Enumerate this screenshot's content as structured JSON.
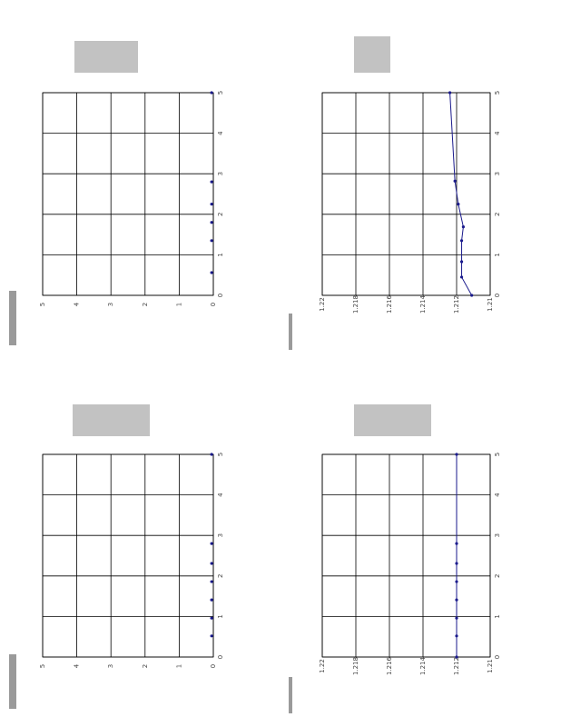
{
  "chart_data": [
    {
      "type": "scatter",
      "x": [
        0.56,
        1.35,
        1.8,
        2.25,
        2.8,
        5
      ],
      "values": [
        0.05,
        0.05,
        0.05,
        0.05,
        0.05,
        0.05
      ],
      "color": "#1a1a8c",
      "xlim": [
        0,
        5
      ],
      "xticks": [
        0,
        1,
        2,
        3,
        4,
        5
      ],
      "ylim": [
        0,
        5
      ],
      "yticks": [
        0,
        1,
        2,
        3,
        4,
        5
      ],
      "grid": true
    },
    {
      "type": "line",
      "x": [
        0,
        0.45,
        0.83,
        1.35,
        1.69,
        2.25,
        2.82,
        5
      ],
      "values": [
        1.2111,
        1.2117,
        1.2117,
        1.2117,
        1.2116,
        1.2119,
        1.2121,
        1.2124
      ],
      "color": "#1a1a8c",
      "xlim": [
        0,
        5
      ],
      "xticks": [
        0,
        1,
        2,
        3,
        4,
        5
      ],
      "ylim": [
        1.21,
        1.22
      ],
      "yticks": [
        1.21,
        1.212,
        1.214,
        1.216,
        1.218,
        1.22
      ],
      "grid": true
    },
    {
      "type": "scatter",
      "x": [
        0.52,
        0.96,
        1.41,
        1.86,
        2.31,
        2.8,
        5
      ],
      "values": [
        0.05,
        0.05,
        0.05,
        0.05,
        0.05,
        0.05,
        0.05
      ],
      "color": "#1a1a8c",
      "xlim": [
        0,
        5
      ],
      "xticks": [
        0,
        1,
        2,
        3,
        4,
        5
      ],
      "ylim": [
        0,
        5
      ],
      "yticks": [
        0,
        1,
        2,
        3,
        4,
        5
      ],
      "grid": true
    },
    {
      "type": "line",
      "x": [
        0,
        0.52,
        0.96,
        1.41,
        1.86,
        2.31,
        2.8,
        5
      ],
      "values": [
        1.212,
        1.212,
        1.212,
        1.212,
        1.212,
        1.212,
        1.212,
        1.212
      ],
      "color": "#1a1a8c",
      "xlim": [
        0,
        5
      ],
      "xticks": [
        0,
        1,
        2,
        3,
        4,
        5
      ],
      "ylim": [
        1.21,
        1.22
      ],
      "yticks": [
        1.21,
        1.212,
        1.214,
        1.216,
        1.218,
        1.22
      ],
      "grid": true
    }
  ]
}
